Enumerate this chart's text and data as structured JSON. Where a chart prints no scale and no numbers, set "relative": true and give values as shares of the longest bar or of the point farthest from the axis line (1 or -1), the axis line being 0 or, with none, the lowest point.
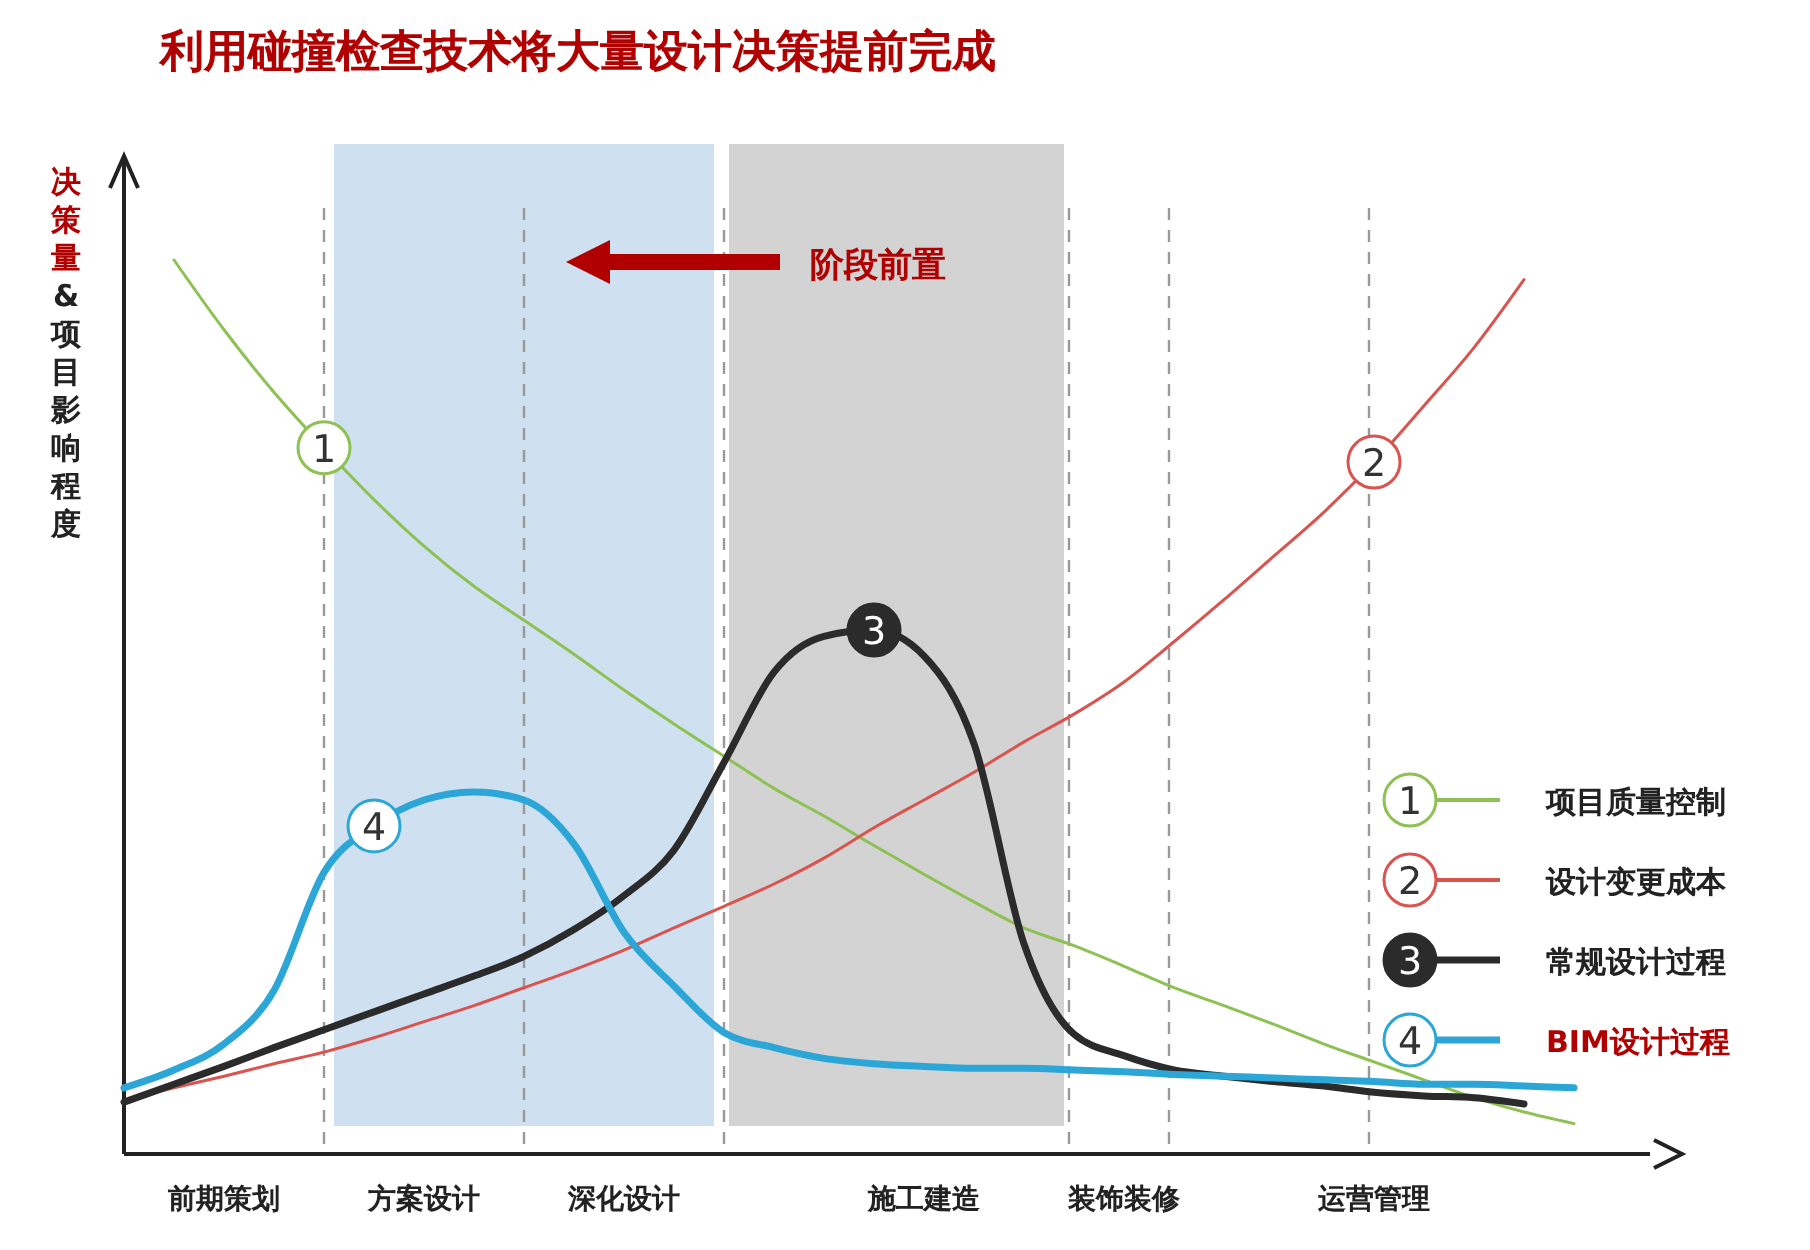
{
  "chart_data": {
    "type": "line",
    "relative": true,
    "title": "利用碰撞检查技术将大量设计决策提前完成",
    "ylabel": "决策量&项目影响程度",
    "categories": [
      null,
      null,
      "前期策划",
      null,
      null,
      null,
      "方案设计",
      null,
      null,
      null,
      "深化设计",
      null,
      null,
      null,
      null,
      null,
      "施工建造",
      null,
      null,
      null,
      "装饰装修",
      null,
      null,
      null,
      null,
      "运营管理",
      null,
      null,
      null,
      null
    ],
    "series": [
      {
        "name": "项目质量控制",
        "color": "#8dc153",
        "values": [
          null,
          1.0,
          0.922,
          0.852,
          0.79,
          0.732,
          0.68,
          0.635,
          0.597,
          0.559,
          0.519,
          0.481,
          0.445,
          0.409,
          0.378,
          0.345,
          0.313,
          0.282,
          0.253,
          0.233,
          0.21,
          0.186,
          0.166,
          0.145,
          0.123,
          0.103,
          0.083,
          0.063,
          0.047,
          0.034
        ]
      },
      {
        "name": "设计变更成本",
        "color": "#d9534f",
        "values": [
          0.06,
          0.074,
          0.087,
          0.101,
          0.114,
          0.13,
          0.148,
          0.166,
          0.186,
          0.206,
          0.228,
          0.253,
          0.277,
          0.302,
          0.331,
          0.365,
          0.396,
          0.427,
          0.461,
          0.492,
          0.528,
          0.573,
          0.62,
          0.669,
          0.718,
          0.774,
          0.837,
          0.902,
          0.978,
          null
        ]
      },
      {
        "name": "常规设计过程",
        "color": "#2b2b2b",
        "values": [
          0.058,
          0.078,
          0.098,
          0.119,
          0.139,
          0.159,
          0.179,
          0.199,
          0.221,
          0.251,
          0.289,
          0.34,
          0.438,
          0.539,
          0.579,
          0.586,
          0.557,
          0.459,
          0.235,
          0.134,
          0.11,
          0.094,
          0.087,
          0.081,
          0.076,
          0.069,
          0.065,
          0.063,
          0.056,
          null
        ]
      },
      {
        "name": "BIM设计过程",
        "color": "#2ba6d6",
        "values": [
          0.074,
          0.094,
          0.123,
          0.183,
          0.315,
          0.367,
          0.396,
          0.405,
          0.396,
          0.347,
          0.248,
          0.188,
          0.136,
          0.119,
          0.107,
          0.101,
          0.098,
          0.096,
          0.096,
          0.094,
          0.092,
          0.089,
          0.087,
          0.085,
          0.083,
          0.081,
          0.078,
          0.078,
          0.076,
          0.074
        ]
      }
    ],
    "annotations": [
      "1",
      "2",
      "3",
      "4",
      "阶段前置"
    ],
    "grid": "x",
    "legend": "bottom right",
    "marker": "none",
    "line_style": "solid"
  }
}
